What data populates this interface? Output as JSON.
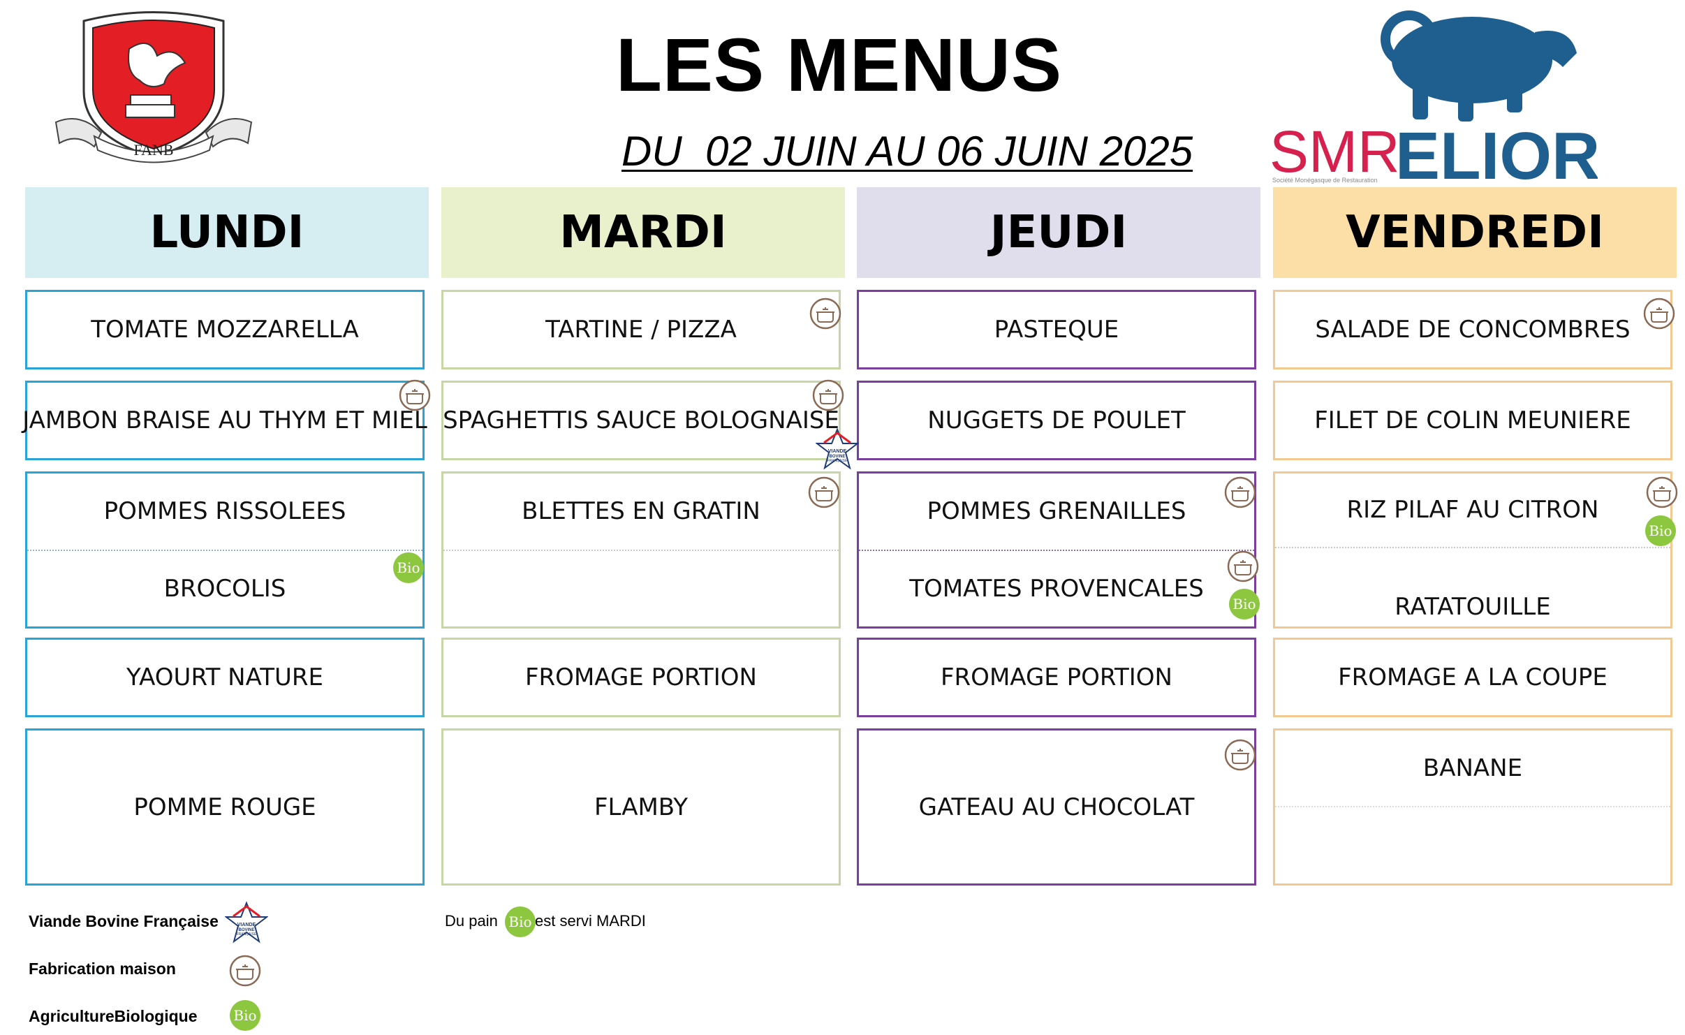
{
  "header": {
    "title": "LES MENUS",
    "dates": "DU  02 JUIN AU 06 JUIN 2025",
    "logo_left_text": "FANB",
    "logo_right_text_1": "SMR",
    "logo_right_text_2": "ELIOR",
    "logo_right_subtext": "Société Monégasque de Restauration"
  },
  "colors": {
    "lundi_bg": "#d6edf2",
    "mardi_bg": "#e8f1cc",
    "jeudi_bg": "#e0ddec",
    "vendredi_bg": "#fbdfa6",
    "bio_green": "#8dc63f",
    "elior_blue": "#1f5f8f"
  },
  "days": [
    {
      "name": "LUNDI",
      "entree": "TOMATE MOZZARELLA",
      "plat": "JAMBON BRAISE AU THYM ET MIEL",
      "garniture_1": "POMMES RISSOLEES",
      "garniture_2": "BROCOLIS",
      "laitage": "YAOURT NATURE",
      "dessert": "POMME ROUGE"
    },
    {
      "name": "MARDI",
      "entree": "TARTINE / PIZZA",
      "plat": "SPAGHETTIS SAUCE BOLOGNAISE",
      "garniture_1": "BLETTES EN GRATIN",
      "garniture_2": "",
      "laitage": "FROMAGE PORTION",
      "dessert": "FLAMBY"
    },
    {
      "name": "JEUDI",
      "entree": "PASTEQUE",
      "plat": "NUGGETS DE POULET",
      "garniture_1": "POMMES GRENAILLES",
      "garniture_2": "TOMATES PROVENCALES",
      "laitage": "FROMAGE PORTION",
      "dessert": "GATEAU AU CHOCOLAT"
    },
    {
      "name": "VENDREDI",
      "entree": "SALADE DE CONCOMBRES",
      "plat": "FILET DE COLIN MEUNIERE",
      "garniture_1": "RIZ PILAF AU CITRON",
      "garniture_2": "RATATOUILLE",
      "laitage": "FROMAGE A LA COUPE",
      "dessert": "BANANE"
    }
  ],
  "icons": {
    "homemade": "homemade-pot-icon",
    "bio": "bio-icon",
    "bio_label": "Bio",
    "vbf": "viande-bovine-francaise-icon",
    "vbf_label_1": "VIANDE",
    "vbf_label_2": "BOVINE",
    "vbf_label_3": "FRANÇAISE"
  },
  "legend": {
    "vbf": "Viande Bovine Française",
    "homemade": "Fabrication maison",
    "bio": "AgricultureBiologique"
  },
  "note": {
    "before": "Du pain",
    "after": "est servi MARDI"
  }
}
